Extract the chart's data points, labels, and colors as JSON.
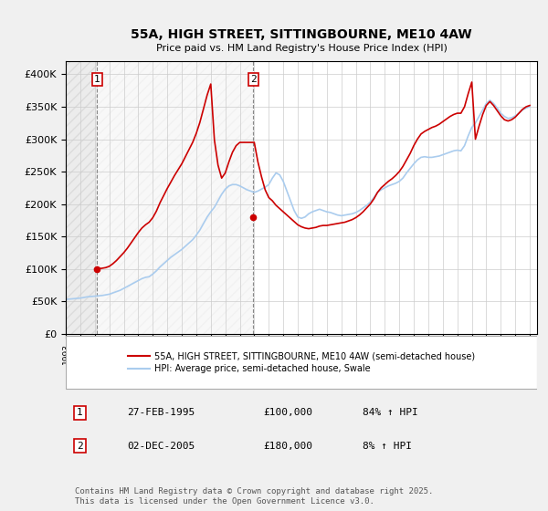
{
  "title": "55A, HIGH STREET, SITTINGBOURNE, ME10 4AW",
  "subtitle": "Price paid vs. HM Land Registry's House Price Index (HPI)",
  "ylabel": "",
  "xlabel": "",
  "ylim": [
    0,
    420000
  ],
  "yticks": [
    0,
    50000,
    100000,
    150000,
    200000,
    250000,
    300000,
    350000,
    400000
  ],
  "ytick_labels": [
    "£0",
    "£50K",
    "£100K",
    "£150K",
    "£200K",
    "£250K",
    "£300K",
    "£350K",
    "£400K"
  ],
  "background_color": "#f0f0f0",
  "plot_bg_color": "#ffffff",
  "red_line_color": "#cc0000",
  "blue_line_color": "#aaccee",
  "marker1_x": 1995.15,
  "marker2_x": 2005.92,
  "marker1_price": 100000,
  "marker2_price": 180000,
  "legend_label_red": "55A, HIGH STREET, SITTINGBOURNE, ME10 4AW (semi-detached house)",
  "legend_label_blue": "HPI: Average price, semi-detached house, Swale",
  "table_row1": [
    "1",
    "27-FEB-1995",
    "£100,000",
    "84% ↑ HPI"
  ],
  "table_row2": [
    "2",
    "02-DEC-2005",
    "£180,000",
    "8% ↑ HPI"
  ],
  "footer": "Contains HM Land Registry data © Crown copyright and database right 2025.\nThis data is licensed under the Open Government Licence v3.0.",
  "hpi_data": {
    "years": [
      1993.0,
      1993.25,
      1993.5,
      1993.75,
      1994.0,
      1994.25,
      1994.5,
      1994.75,
      1995.0,
      1995.25,
      1995.5,
      1995.75,
      1996.0,
      1996.25,
      1996.5,
      1996.75,
      1997.0,
      1997.25,
      1997.5,
      1997.75,
      1998.0,
      1998.25,
      1998.5,
      1998.75,
      1999.0,
      1999.25,
      1999.5,
      1999.75,
      2000.0,
      2000.25,
      2000.5,
      2000.75,
      2001.0,
      2001.25,
      2001.5,
      2001.75,
      2002.0,
      2002.25,
      2002.5,
      2002.75,
      2003.0,
      2003.25,
      2003.5,
      2003.75,
      2004.0,
      2004.25,
      2004.5,
      2004.75,
      2005.0,
      2005.25,
      2005.5,
      2005.75,
      2006.0,
      2006.25,
      2006.5,
      2006.75,
      2007.0,
      2007.25,
      2007.5,
      2007.75,
      2008.0,
      2008.25,
      2008.5,
      2008.75,
      2009.0,
      2009.25,
      2009.5,
      2009.75,
      2010.0,
      2010.25,
      2010.5,
      2010.75,
      2011.0,
      2011.25,
      2011.5,
      2011.75,
      2012.0,
      2012.25,
      2012.5,
      2012.75,
      2013.0,
      2013.25,
      2013.5,
      2013.75,
      2014.0,
      2014.25,
      2014.5,
      2014.75,
      2015.0,
      2015.25,
      2015.5,
      2015.75,
      2016.0,
      2016.25,
      2016.5,
      2016.75,
      2017.0,
      2017.25,
      2017.5,
      2017.75,
      2018.0,
      2018.25,
      2018.5,
      2018.75,
      2019.0,
      2019.25,
      2019.5,
      2019.75,
      2020.0,
      2020.25,
      2020.5,
      2020.75,
      2021.0,
      2021.25,
      2021.5,
      2021.75,
      2022.0,
      2022.25,
      2022.5,
      2022.75,
      2023.0,
      2023.25,
      2023.5,
      2023.75,
      2024.0,
      2024.25,
      2024.5,
      2024.75,
      2025.0
    ],
    "values": [
      53000,
      53500,
      54000,
      54500,
      55000,
      56000,
      57000,
      57500,
      58000,
      58500,
      59000,
      60000,
      61000,
      63000,
      65000,
      67000,
      70000,
      73000,
      76000,
      79000,
      82000,
      85000,
      87000,
      88000,
      92000,
      97000,
      103000,
      108000,
      113000,
      118000,
      122000,
      126000,
      130000,
      135000,
      140000,
      145000,
      152000,
      160000,
      170000,
      180000,
      188000,
      195000,
      205000,
      215000,
      223000,
      228000,
      230000,
      230000,
      228000,
      225000,
      222000,
      220000,
      218000,
      220000,
      223000,
      226000,
      230000,
      240000,
      248000,
      245000,
      235000,
      220000,
      205000,
      190000,
      180000,
      178000,
      180000,
      185000,
      188000,
      190000,
      192000,
      190000,
      188000,
      187000,
      185000,
      183000,
      182000,
      183000,
      184000,
      185000,
      187000,
      190000,
      194000,
      198000,
      203000,
      210000,
      218000,
      222000,
      225000,
      228000,
      230000,
      232000,
      235000,
      240000,
      248000,
      255000,
      262000,
      268000,
      272000,
      273000,
      272000,
      272000,
      273000,
      274000,
      276000,
      278000,
      280000,
      282000,
      283000,
      282000,
      290000,
      305000,
      318000,
      325000,
      335000,
      345000,
      355000,
      360000,
      355000,
      348000,
      340000,
      335000,
      332000,
      333000,
      336000,
      340000,
      345000,
      348000,
      350000
    ]
  },
  "price_paid_data": {
    "years": [
      1993.0,
      1993.25,
      1993.5,
      1993.75,
      1994.0,
      1994.25,
      1994.5,
      1994.75,
      1995.0,
      1995.25,
      1995.5,
      1995.75,
      1996.0,
      1996.25,
      1996.5,
      1996.75,
      1997.0,
      1997.25,
      1997.5,
      1997.75,
      1998.0,
      1998.25,
      1998.5,
      1998.75,
      1999.0,
      1999.25,
      1999.5,
      1999.75,
      2000.0,
      2000.25,
      2000.5,
      2000.75,
      2001.0,
      2001.25,
      2001.5,
      2001.75,
      2002.0,
      2002.25,
      2002.5,
      2002.75,
      2003.0,
      2003.25,
      2003.5,
      2003.75,
      2004.0,
      2004.25,
      2004.5,
      2004.75,
      2005.0,
      2005.25,
      2005.5,
      2005.75,
      2006.0,
      2006.25,
      2006.5,
      2006.75,
      2007.0,
      2007.25,
      2007.5,
      2007.75,
      2008.0,
      2008.25,
      2008.5,
      2008.75,
      2009.0,
      2009.25,
      2009.5,
      2009.75,
      2010.0,
      2010.25,
      2010.5,
      2010.75,
      2011.0,
      2011.25,
      2011.5,
      2011.75,
      2012.0,
      2012.25,
      2012.5,
      2012.75,
      2013.0,
      2013.25,
      2013.5,
      2013.75,
      2014.0,
      2014.25,
      2014.5,
      2014.75,
      2015.0,
      2015.25,
      2015.5,
      2015.75,
      2016.0,
      2016.25,
      2016.5,
      2016.75,
      2017.0,
      2017.25,
      2017.5,
      2017.75,
      2018.0,
      2018.25,
      2018.5,
      2018.75,
      2019.0,
      2019.25,
      2019.5,
      2019.75,
      2020.0,
      2020.25,
      2020.5,
      2020.75,
      2021.0,
      2021.25,
      2021.5,
      2021.75,
      2022.0,
      2022.25,
      2022.5,
      2022.75,
      2023.0,
      2023.25,
      2023.5,
      2023.75,
      2024.0,
      2024.25,
      2024.5,
      2024.75,
      2025.0
    ],
    "values": [
      null,
      null,
      null,
      null,
      null,
      null,
      null,
      null,
      100000,
      100500,
      101000,
      102000,
      104000,
      108000,
      113000,
      119000,
      125000,
      132000,
      140000,
      148000,
      156000,
      163000,
      168000,
      172000,
      179000,
      189000,
      202000,
      213000,
      224000,
      234000,
      244000,
      253000,
      262000,
      273000,
      284000,
      295000,
      309000,
      326000,
      347000,
      368000,
      385000,
      299000,
      260000,
      240000,
      248000,
      265000,
      280000,
      290000,
      295000,
      295000,
      295000,
      295000,
      295000,
      265000,
      242000,
      222000,
      210000,
      205000,
      198000,
      193000,
      188000,
      183000,
      178000,
      173000,
      168000,
      165000,
      163000,
      162000,
      163000,
      164000,
      166000,
      167000,
      167000,
      168000,
      169000,
      170000,
      171000,
      172000,
      174000,
      176000,
      179000,
      183000,
      188000,
      194000,
      200000,
      208000,
      218000,
      225000,
      230000,
      235000,
      239000,
      244000,
      250000,
      258000,
      268000,
      278000,
      290000,
      300000,
      308000,
      312000,
      315000,
      318000,
      320000,
      323000,
      327000,
      331000,
      335000,
      338000,
      340000,
      340000,
      350000,
      370000,
      388000,
      300000,
      320000,
      338000,
      352000,
      358000,
      352000,
      344000,
      336000,
      330000,
      328000,
      330000,
      334000,
      340000,
      346000,
      350000,
      352000
    ]
  }
}
